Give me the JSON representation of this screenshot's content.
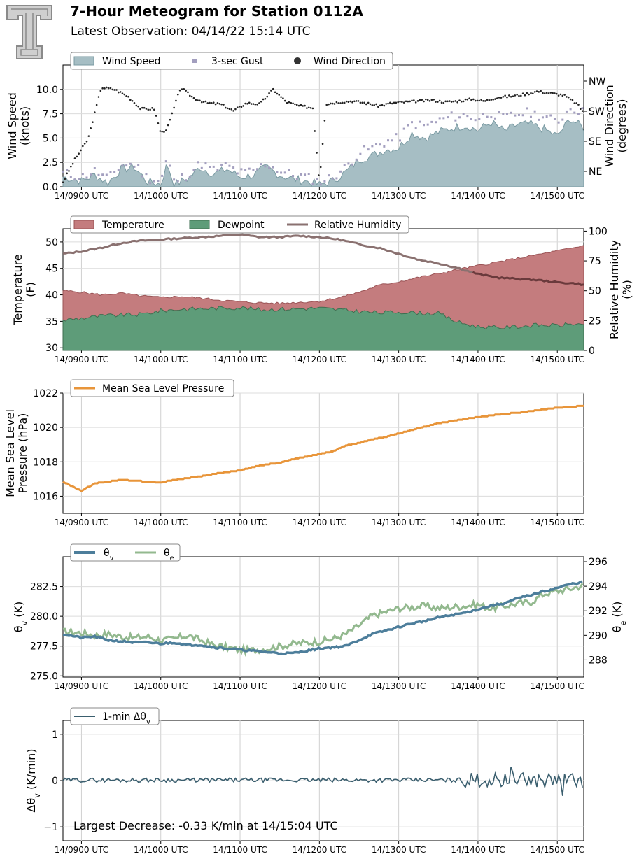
{
  "header": {
    "title": "7-Hour Meteogram for Station 0112A",
    "subtitle": "Latest Observation: 04/14/22 15:14 UTC"
  },
  "time_axis": {
    "start": "14/0846 UTC",
    "end": "14/1520 UTC",
    "ticks": [
      "14/0900 UTC",
      "14/1000 UTC",
      "14/1100 UTC",
      "14/1200 UTC",
      "14/1300 UTC",
      "14/1400 UTC",
      "14/1500 UTC"
    ]
  },
  "colors": {
    "wind_speed": "#a6bec4",
    "wind_speed_edge": "#7a9aa2",
    "gust": "#a39fbf",
    "wind_direction": "#222222",
    "temperature": "#c47c7e",
    "dewpoint": "#5e9c79",
    "rh": "#8a7170",
    "rh_over": "#6a3a3c",
    "pressure": "#e8953a",
    "theta_v": "#4d7e9b",
    "theta_e": "#93b98f",
    "dtheta": "#3a5e6e",
    "annotation": "#2c4e68"
  },
  "chart_data": [
    {
      "type": "area",
      "panel": "wind",
      "ylabel": "Wind Speed\n(knots)",
      "ylabel2": "Wind Direction\n(degrees)",
      "ylim": [
        0,
        12.5
      ],
      "yticks": [
        "0.0",
        "2.5",
        "5.0",
        "7.5",
        "10.0"
      ],
      "y2ticks": [
        "NE",
        "SE",
        "SW",
        "NW"
      ],
      "legend": [
        "Wind Speed",
        "3-sec Gust",
        "Wind Direction"
      ],
      "series": [
        {
          "name": "Wind Speed",
          "x": [
            "08:46",
            "09:00",
            "09:10",
            "09:20",
            "09:30",
            "09:40",
            "09:50",
            "10:00",
            "10:05",
            "10:10",
            "10:20",
            "10:30",
            "10:40",
            "10:50",
            "11:00",
            "11:10",
            "11:20",
            "11:30",
            "11:40",
            "11:50",
            "12:00",
            "12:10",
            "12:20",
            "12:30",
            "12:40",
            "12:50",
            "13:00",
            "13:10",
            "13:20",
            "13:30",
            "13:40",
            "13:50",
            "14:00",
            "14:10",
            "14:20",
            "14:30",
            "14:40",
            "14:50",
            "15:00",
            "15:10",
            "15:20"
          ],
          "values": [
            1.0,
            0.6,
            1.2,
            0.4,
            1.8,
            2.0,
            0.5,
            0.3,
            2.4,
            0.2,
            0.8,
            2.0,
            1.3,
            1.8,
            1.0,
            1.2,
            2.0,
            1.2,
            0.8,
            0.6,
            0.2,
            0.6,
            1.5,
            2.8,
            3.2,
            3.8,
            4.0,
            5.5,
            5.0,
            5.6,
            6.0,
            6.3,
            5.8,
            6.6,
            5.7,
            6.4,
            6.4,
            5.9,
            5.2,
            7.0,
            6.0
          ]
        },
        {
          "name": "3-sec Gust",
          "x": [
            "08:46",
            "09:00",
            "09:10",
            "09:20",
            "09:30",
            "09:40",
            "09:50",
            "10:00",
            "10:05",
            "10:10",
            "10:20",
            "10:30",
            "10:40",
            "10:50",
            "11:00",
            "11:10",
            "11:20",
            "11:30",
            "11:40",
            "11:50",
            "12:00",
            "12:10",
            "12:20",
            "12:30",
            "12:40",
            "12:50",
            "13:00",
            "13:10",
            "13:20",
            "13:30",
            "13:40",
            "13:50",
            "14:00",
            "14:10",
            "14:20",
            "14:30",
            "14:40",
            "14:50",
            "15:00",
            "15:10",
            "15:20"
          ],
          "values": [
            1.4,
            1.0,
            1.6,
            0.8,
            2.2,
            2.3,
            0.9,
            0.6,
            3.0,
            0.5,
            1.2,
            2.4,
            1.7,
            2.2,
            1.4,
            1.6,
            2.4,
            1.6,
            1.2,
            1.0,
            0.5,
            1.0,
            2.0,
            3.5,
            4.0,
            4.6,
            5.0,
            6.5,
            6.2,
            6.8,
            7.2,
            7.3,
            7.0,
            7.6,
            7.0,
            7.5,
            7.6,
            7.2,
            6.6,
            8.2,
            7.6
          ]
        },
        {
          "name": "Wind Direction",
          "x": [
            "08:46",
            "08:55",
            "09:05",
            "09:15",
            "09:25",
            "09:35",
            "09:45",
            "09:55",
            "10:00",
            "10:05",
            "10:15",
            "10:25",
            "10:35",
            "10:45",
            "10:55",
            "11:05",
            "11:15",
            "11:25",
            "11:35",
            "11:45",
            "11:55",
            "12:00",
            "12:05",
            "12:15",
            "12:25",
            "12:35",
            "12:45",
            "12:55",
            "13:05",
            "13:15",
            "13:25",
            "13:35",
            "13:45",
            "13:55",
            "14:05",
            "14:15",
            "14:25",
            "14:35",
            "14:45",
            "14:55",
            "15:05",
            "15:15",
            "15:20"
          ],
          "values": [
            0.5,
            2.8,
            4.9,
            10.2,
            10.0,
            9.3,
            8.0,
            8.0,
            5.5,
            6.0,
            10.2,
            9.1,
            8.6,
            8.5,
            7.8,
            8.6,
            8.5,
            10.0,
            8.7,
            8.3,
            8.1,
            0.5,
            8.5,
            8.7,
            8.8,
            8.6,
            8.3,
            8.6,
            8.7,
            8.8,
            8.9,
            8.7,
            8.8,
            9.0,
            8.8,
            9.2,
            9.3,
            9.5,
            9.8,
            9.6,
            9.4,
            8.5,
            7.6
          ]
        }
      ]
    },
    {
      "type": "area",
      "panel": "thermo",
      "ylabel": "Temperature\n(F)",
      "ylabel2": "Relative Humidity\n(%)",
      "ylim": [
        29.5,
        52.5
      ],
      "y2lim": [
        0,
        102
      ],
      "yticks": [
        "30",
        "35",
        "40",
        "45",
        "50"
      ],
      "y2ticks": [
        "0",
        "25",
        "50",
        "75",
        "100"
      ],
      "legend": [
        "Temperature",
        "Dewpoint",
        "Relative Humidity"
      ],
      "series": [
        {
          "name": "Temperature",
          "x": [
            "08:46",
            "09:00",
            "09:15",
            "09:30",
            "09:45",
            "10:00",
            "10:15",
            "10:30",
            "10:45",
            "11:00",
            "11:15",
            "11:30",
            "11:45",
            "12:00",
            "12:15",
            "12:30",
            "12:45",
            "13:00",
            "13:15",
            "13:30",
            "13:45",
            "14:00",
            "14:15",
            "14:30",
            "14:45",
            "15:00",
            "15:15",
            "15:20"
          ],
          "values": [
            40.8,
            40.5,
            40.0,
            40.3,
            39.8,
            39.5,
            39.7,
            39.4,
            39.0,
            38.7,
            38.5,
            38.4,
            38.6,
            38.8,
            39.5,
            40.5,
            41.8,
            42.5,
            43.3,
            44.0,
            44.8,
            45.5,
            46.2,
            46.9,
            47.6,
            48.3,
            49.0,
            49.4
          ]
        },
        {
          "name": "Dewpoint",
          "x": [
            "08:46",
            "09:00",
            "09:15",
            "09:30",
            "09:45",
            "10:00",
            "10:15",
            "10:30",
            "10:45",
            "11:00",
            "11:15",
            "11:30",
            "11:45",
            "12:00",
            "12:15",
            "12:30",
            "12:45",
            "13:00",
            "13:15",
            "13:30",
            "13:45",
            "14:00",
            "14:15",
            "14:30",
            "14:45",
            "15:00",
            "15:15",
            "15:20"
          ],
          "values": [
            35.2,
            35.6,
            36.0,
            36.2,
            36.3,
            37.0,
            37.3,
            37.4,
            37.5,
            37.6,
            37.2,
            37.3,
            37.4,
            37.5,
            37.2,
            36.9,
            36.6,
            36.8,
            36.6,
            36.5,
            34.8,
            34.0,
            33.8,
            34.0,
            34.3,
            34.2,
            34.6,
            34.0
          ]
        },
        {
          "name": "Relative Humidity",
          "x": [
            "08:46",
            "09:00",
            "09:15",
            "09:30",
            "09:45",
            "10:00",
            "10:15",
            "10:30",
            "10:45",
            "11:00",
            "11:15",
            "11:30",
            "11:45",
            "12:00",
            "12:15",
            "12:30",
            "12:45",
            "13:00",
            "13:15",
            "13:30",
            "13:45",
            "14:00",
            "14:15",
            "14:30",
            "14:45",
            "15:00",
            "15:15",
            "15:20"
          ],
          "values": [
            81,
            83,
            86,
            90,
            92,
            93,
            94,
            95,
            96,
            97,
            95,
            95,
            96,
            95,
            93,
            89,
            86,
            81,
            76,
            73,
            69,
            64,
            61,
            60,
            59,
            57,
            56,
            55
          ]
        }
      ]
    },
    {
      "type": "line",
      "panel": "pressure",
      "ylabel": "Mean Sea Level\nPressure (hPa)",
      "ylim": [
        1015.0,
        1022.0
      ],
      "yticks": [
        "1016",
        "1018",
        "1020",
        "1022"
      ],
      "legend": [
        "Mean Sea Level Pressure"
      ],
      "series": [
        {
          "name": "Mean Sea Level Pressure",
          "x": [
            "08:46",
            "09:00",
            "09:10",
            "09:20",
            "09:30",
            "09:40",
            "09:50",
            "10:00",
            "10:10",
            "10:20",
            "10:30",
            "10:40",
            "10:50",
            "11:00",
            "11:10",
            "11:20",
            "11:30",
            "11:40",
            "11:50",
            "12:00",
            "12:10",
            "12:20",
            "12:30",
            "12:40",
            "12:50",
            "13:00",
            "13:10",
            "13:20",
            "13:30",
            "13:40",
            "13:50",
            "14:00",
            "14:10",
            "14:20",
            "14:30",
            "14:40",
            "14:50",
            "15:00",
            "15:10",
            "15:20"
          ],
          "values": [
            1016.85,
            1016.3,
            1016.75,
            1016.85,
            1016.95,
            1016.9,
            1016.85,
            1016.8,
            1016.95,
            1017.05,
            1017.15,
            1017.3,
            1017.4,
            1017.5,
            1017.7,
            1017.85,
            1017.95,
            1018.15,
            1018.3,
            1018.45,
            1018.6,
            1018.95,
            1019.1,
            1019.3,
            1019.45,
            1019.65,
            1019.85,
            1020.05,
            1020.25,
            1020.35,
            1020.5,
            1020.6,
            1020.7,
            1020.8,
            1020.85,
            1020.95,
            1021.05,
            1021.15,
            1021.2,
            1021.25
          ]
        }
      ]
    },
    {
      "type": "line",
      "panel": "theta",
      "ylabel": "θv (K)",
      "ylabel2": "θe (K)",
      "ylim": [
        274.9,
        285.0
      ],
      "y2lim": [
        286.6,
        296.4
      ],
      "yticks": [
        "275.0",
        "277.5",
        "280.0",
        "282.5"
      ],
      "y2ticks": [
        "288",
        "290",
        "292",
        "294",
        "296"
      ],
      "legend": [
        "θv",
        "θe"
      ],
      "series": [
        {
          "name": "θv",
          "x": [
            "08:46",
            "09:00",
            "09:10",
            "09:20",
            "09:30",
            "09:40",
            "09:50",
            "10:00",
            "10:10",
            "10:20",
            "10:30",
            "10:40",
            "10:50",
            "11:00",
            "11:10",
            "11:20",
            "11:30",
            "11:40",
            "11:50",
            "12:00",
            "12:10",
            "12:20",
            "12:30",
            "12:40",
            "12:50",
            "13:00",
            "13:10",
            "13:20",
            "13:30",
            "13:40",
            "13:50",
            "14:00",
            "14:10",
            "14:20",
            "14:30",
            "14:40",
            "14:50",
            "15:00",
            "15:10",
            "15:20"
          ],
          "values": [
            278.5,
            278.2,
            278.3,
            278.0,
            277.9,
            277.8,
            277.8,
            277.7,
            277.8,
            277.6,
            277.6,
            277.4,
            277.3,
            277.2,
            277.1,
            277.0,
            276.9,
            276.9,
            277.1,
            277.3,
            277.4,
            277.5,
            278.0,
            278.5,
            278.8,
            279.1,
            279.4,
            279.6,
            279.9,
            280.1,
            280.3,
            280.6,
            280.9,
            281.1,
            281.5,
            281.8,
            282.1,
            282.4,
            282.7,
            282.9
          ]
        },
        {
          "name": "θe",
          "x": [
            "08:46",
            "09:00",
            "09:10",
            "09:20",
            "09:30",
            "09:40",
            "09:50",
            "10:00",
            "10:10",
            "10:20",
            "10:30",
            "10:40",
            "10:50",
            "11:00",
            "11:10",
            "11:20",
            "11:30",
            "11:40",
            "11:50",
            "12:00",
            "12:10",
            "12:20",
            "12:30",
            "12:40",
            "12:50",
            "13:00",
            "13:10",
            "13:20",
            "13:30",
            "13:40",
            "13:50",
            "14:00",
            "14:10",
            "14:20",
            "14:30",
            "14:40",
            "14:50",
            "15:00",
            "15:10",
            "15:20"
          ],
          "values": [
            290.3,
            290.2,
            290.0,
            290.1,
            289.9,
            289.8,
            289.9,
            289.6,
            289.7,
            290.0,
            289.6,
            289.2,
            289.0,
            288.8,
            288.8,
            288.9,
            289.1,
            289.3,
            289.4,
            289.5,
            289.7,
            290.1,
            290.8,
            291.6,
            291.9,
            292.2,
            292.3,
            292.4,
            292.2,
            292.3,
            292.4,
            292.5,
            292.2,
            292.4,
            292.6,
            292.7,
            293.4,
            293.6,
            293.8,
            294.1
          ]
        }
      ]
    },
    {
      "type": "line",
      "panel": "dtheta",
      "ylabel": "Δθv (K/min)",
      "ylim": [
        -1.3,
        1.3
      ],
      "yticks": [
        "−1",
        "0",
        "1"
      ],
      "legend": [
        "1-min Δθv"
      ],
      "annotation": "Largest Decrease: -0.33 K/min at 14/15:04 UTC",
      "series": [
        {
          "name": "1-min Δθv",
          "x": [
            "08:46",
            "09:00",
            "09:15",
            "09:30",
            "09:45",
            "10:00",
            "10:15",
            "10:30",
            "10:45",
            "11:00",
            "11:15",
            "11:30",
            "11:45",
            "12:00",
            "12:15",
            "12:30",
            "12:45",
            "13:00",
            "13:15",
            "13:30",
            "13:45",
            "14:00",
            "14:10",
            "14:20",
            "14:25",
            "14:30",
            "14:40",
            "14:50",
            "15:00",
            "15:04",
            "15:10",
            "15:20"
          ],
          "values": [
            0.0,
            0.02,
            -0.03,
            0.03,
            -0.02,
            0.01,
            -0.02,
            0.02,
            -0.02,
            0.03,
            -0.02,
            0.01,
            0.0,
            0.01,
            0.02,
            0.02,
            0.03,
            0.02,
            0.03,
            0.04,
            0.06,
            0.08,
            -0.12,
            0.12,
            0.3,
            -0.15,
            0.15,
            -0.15,
            0.2,
            -0.33,
            0.15,
            0.1
          ]
        }
      ]
    }
  ]
}
